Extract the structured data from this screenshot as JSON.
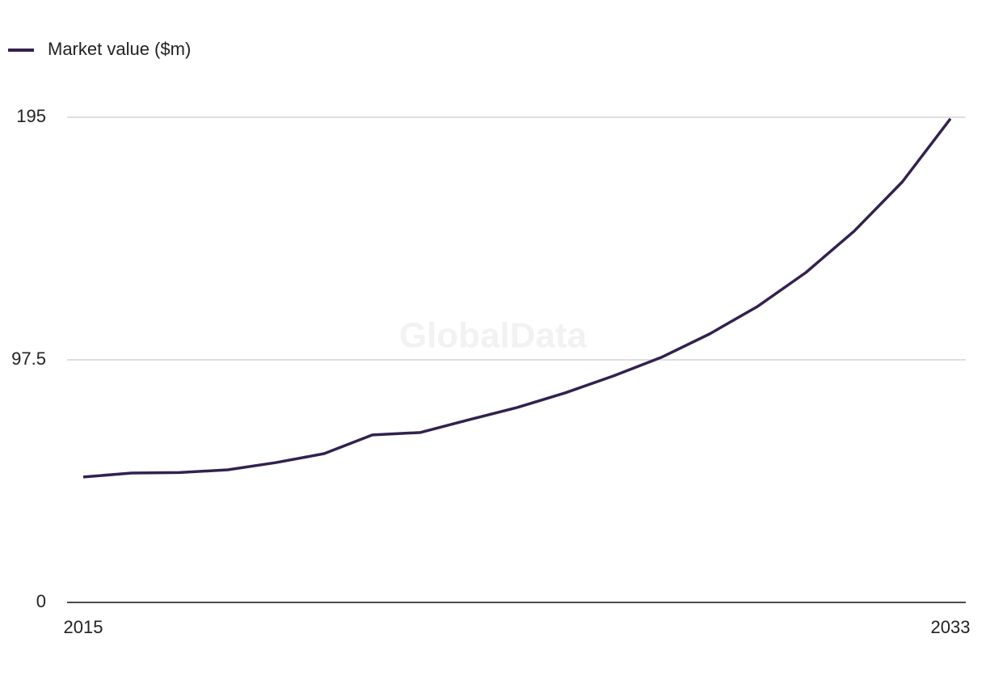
{
  "chart_data": {
    "type": "line",
    "watermark": "GlobalData",
    "x": [
      2015,
      2016,
      2017,
      2018,
      2019,
      2020,
      2021,
      2022,
      2023,
      2024,
      2025,
      2026,
      2027,
      2028,
      2029,
      2030,
      2031,
      2032,
      2033
    ],
    "series": [
      {
        "name": "Market value ($m)",
        "color": "#33214f",
        "values": [
          50.4,
          52.0,
          52.2,
          53.3,
          56.2,
          59.8,
          67.3,
          68.3,
          73.4,
          78.3,
          84.2,
          91.0,
          98.5,
          107.9,
          119.0,
          132.6,
          149.2,
          169.0,
          194.4
        ]
      }
    ],
    "xlim": [
      2015,
      2033
    ],
    "xticks": [
      2015,
      2033
    ],
    "ylim": [
      0,
      195
    ],
    "yticks": [
      0,
      97.5,
      195
    ],
    "grid": true,
    "legend": "top-left"
  }
}
